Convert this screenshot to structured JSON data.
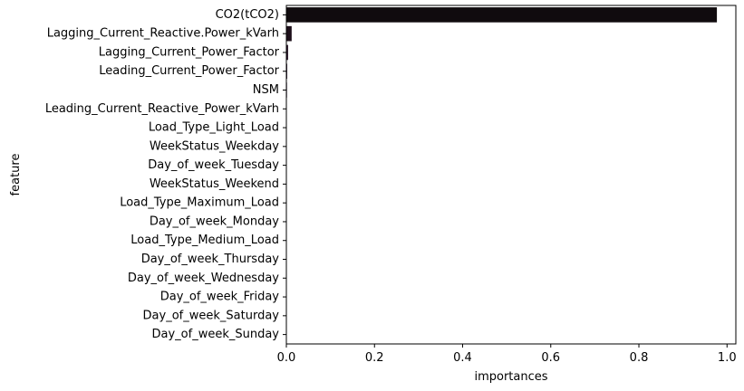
{
  "chart_data": {
    "type": "bar",
    "orientation": "horizontal",
    "xlabel": "importances",
    "ylabel": "feature",
    "xlim": [
      0,
      1.02
    ],
    "xticks": [
      0.0,
      0.2,
      0.4,
      0.6,
      0.8,
      1.0
    ],
    "xtick_labels": [
      "0.0",
      "0.2",
      "0.4",
      "0.6",
      "0.8",
      "1.0"
    ],
    "grid": false,
    "categories": [
      "CO2(tCO2)",
      "Lagging_Current_Reactive.Power_kVarh",
      "Lagging_Current_Power_Factor",
      "Leading_Current_Power_Factor",
      "NSM",
      "Leading_Current_Reactive_Power_kVarh",
      "Load_Type_Light_Load",
      "WeekStatus_Weekday",
      "Day_of_week_Tuesday",
      "WeekStatus_Weekend",
      "Load_Type_Maximum_Load",
      "Day_of_week_Monday",
      "Load_Type_Medium_Load",
      "Day_of_week_Thursday",
      "Day_of_week_Wednesday",
      "Day_of_week_Friday",
      "Day_of_week_Saturday",
      "Day_of_week_Sunday"
    ],
    "values": [
      0.977,
      0.012,
      0.004,
      0.002,
      0.0015,
      0.001,
      0.0005,
      0.0003,
      0.0002,
      0.0002,
      0.0001,
      0.0001,
      0.0001,
      0.0001,
      0.0001,
      0.0001,
      5e-05,
      5e-05
    ],
    "colors": [
      "#100b0e",
      "#1d0f1a",
      "#2c1a2c",
      "#3a2a3e",
      "#4a3c51",
      "#5a4f63",
      "#6b6276",
      "#7c7588",
      "#8e899a",
      "#a09cac",
      "#b2afbd",
      "#c3c1cd",
      "#d2d1db",
      "#dfdee6",
      "#e9e8ee",
      "#f0eff4",
      "#f5f4f8",
      "#f9f9fb"
    ]
  }
}
